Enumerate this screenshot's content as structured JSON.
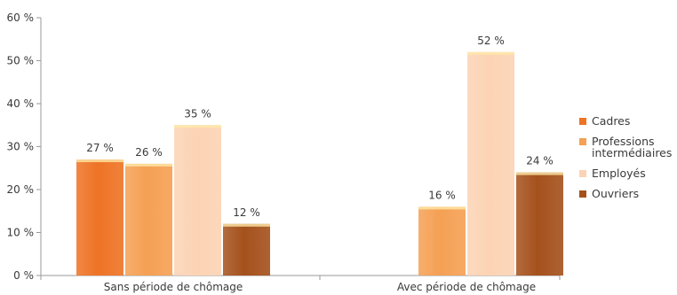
{
  "chart_data": {
    "type": "bar",
    "categories": [
      "Sans période de chômage",
      "Avec période de chômage"
    ],
    "series": [
      {
        "name": "Cadres",
        "values": [
          27,
          null
        ],
        "labels": [
          "27 %",
          ""
        ],
        "color": "#ee7325"
      },
      {
        "name": "Professions intermédiaires",
        "values": [
          26,
          16
        ],
        "labels": [
          "26 %",
          "16 %"
        ],
        "color": "#f5a054"
      },
      {
        "name": "Employés",
        "values": [
          35,
          52
        ],
        "labels": [
          "35 %",
          "52 %"
        ],
        "color": "#fcd3b4"
      },
      {
        "name": "Ouvriers",
        "values": [
          12,
          24
        ],
        "labels": [
          "12 %",
          "24 %"
        ],
        "color": "#a5511c"
      }
    ],
    "yticks": [
      "0 %",
      "10 %",
      "20 %",
      "30 %",
      "40 %",
      "50 %",
      "60 %"
    ],
    "ylim": [
      0,
      60
    ],
    "grid": false,
    "legend_position": "right"
  }
}
